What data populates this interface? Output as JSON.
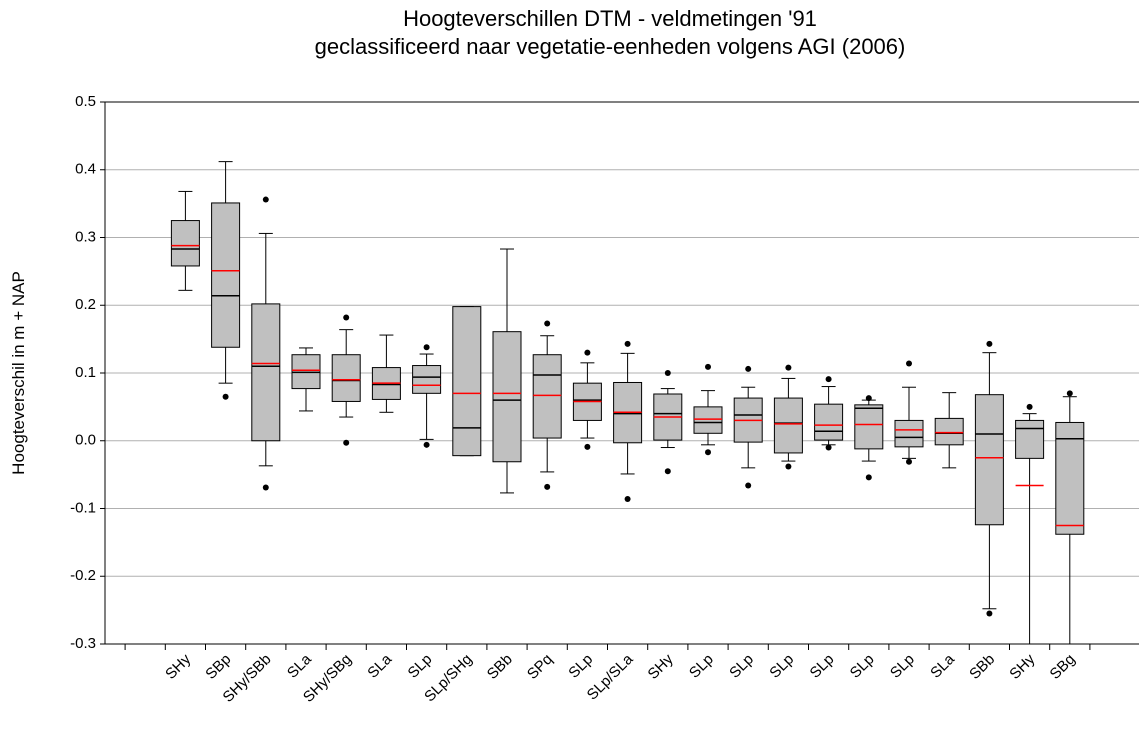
{
  "chart_data": {
    "type": "box",
    "title": "Hoogteverschillen DTM - veldmetingen '91",
    "subtitle": "geclassificeerd naar vegetatie-eenheden volgens AGI (2006)",
    "y_label": "Hoogteverschil in m + NAP",
    "ylim": [
      -0.3,
      0.5
    ],
    "yticks": [
      0.5,
      0.4,
      0.3,
      0.2,
      0.1,
      {
        "value": 0,
        "label": "0.0"
      },
      -0.1,
      -0.2,
      -0.3
    ],
    "grid": true,
    "box_color": "#c0c0c0",
    "median_color": "#000000",
    "mean_color": "#ff0000",
    "boxes": [
      {
        "label": "SHy",
        "low": 0.222,
        "q1": 0.258,
        "median": 0.283,
        "q3": 0.325,
        "high": 0.368,
        "mean": 0.288,
        "outliers": []
      },
      {
        "label": "SBp",
        "low": 0.085,
        "q1": 0.138,
        "median": 0.214,
        "q3": 0.351,
        "high": 0.412,
        "mean": 0.251,
        "outliers": [
          0.065
        ]
      },
      {
        "label": "SHy/SBb",
        "low": -0.037,
        "q1": 0.0,
        "median": 0.11,
        "q3": 0.202,
        "high": 0.306,
        "mean": 0.114,
        "outliers": [
          0.356,
          -0.069
        ]
      },
      {
        "label": "SLa",
        "low": 0.044,
        "q1": 0.077,
        "median": 0.101,
        "q3": 0.127,
        "high": 0.137,
        "mean": 0.104,
        "outliers": []
      },
      {
        "label": "SHy/SBg",
        "low": 0.035,
        "q1": 0.058,
        "median": 0.089,
        "q3": 0.127,
        "high": 0.164,
        "mean": 0.09,
        "outliers": [
          0.182,
          -0.003
        ]
      },
      {
        "label": "SLa",
        "low": 0.042,
        "q1": 0.061,
        "median": 0.083,
        "q3": 0.108,
        "high": 0.156,
        "mean": 0.085,
        "outliers": []
      },
      {
        "label": "SLp",
        "low": 0.002,
        "q1": 0.07,
        "median": 0.094,
        "q3": 0.111,
        "high": 0.128,
        "mean": 0.082,
        "outliers": [
          0.138,
          -0.006
        ]
      },
      {
        "label": "SLp/SHg",
        "low": -0.022,
        "q1": -0.022,
        "median": 0.019,
        "q3": 0.198,
        "high": 0.198,
        "mean": 0.07,
        "outliers": []
      },
      {
        "label": "SBb",
        "low": -0.077,
        "q1": -0.031,
        "median": 0.06,
        "q3": 0.161,
        "high": 0.283,
        "mean": 0.07,
        "outliers": []
      },
      {
        "label": "SPq",
        "low": -0.046,
        "q1": 0.004,
        "median": 0.097,
        "q3": 0.127,
        "high": 0.155,
        "mean": 0.067,
        "outliers": [
          0.173,
          -0.068
        ]
      },
      {
        "label": "SLp",
        "low": 0.004,
        "q1": 0.03,
        "median": 0.06,
        "q3": 0.085,
        "high": 0.115,
        "mean": 0.058,
        "outliers": [
          0.13,
          -0.009
        ]
      },
      {
        "label": "SLp/SLa",
        "low": -0.049,
        "q1": -0.003,
        "median": 0.04,
        "q3": 0.086,
        "high": 0.129,
        "mean": 0.042,
        "outliers": [
          0.143,
          -0.086
        ]
      },
      {
        "label": "SHy",
        "low": -0.01,
        "q1": 0.001,
        "median": 0.04,
        "q3": 0.069,
        "high": 0.077,
        "mean": 0.035,
        "outliers": [
          0.1,
          -0.045
        ]
      },
      {
        "label": "SLp",
        "low": -0.006,
        "q1": 0.011,
        "median": 0.027,
        "q3": 0.05,
        "high": 0.074,
        "mean": 0.032,
        "outliers": [
          0.109,
          -0.017
        ]
      },
      {
        "label": "SLp",
        "low": -0.04,
        "q1": -0.002,
        "median": 0.038,
        "q3": 0.063,
        "high": 0.079,
        "mean": 0.03,
        "outliers": [
          0.106,
          -0.066
        ]
      },
      {
        "label": "SLp",
        "low": -0.03,
        "q1": -0.018,
        "median": 0.026,
        "q3": 0.063,
        "high": 0.092,
        "mean": 0.025,
        "outliers": [
          0.108,
          -0.038
        ]
      },
      {
        "label": "SLp",
        "low": -0.006,
        "q1": 0.001,
        "median": 0.014,
        "q3": 0.054,
        "high": 0.08,
        "mean": 0.023,
        "outliers": [
          0.091,
          -0.01
        ]
      },
      {
        "label": "SLp",
        "low": -0.03,
        "q1": -0.012,
        "median": 0.048,
        "q3": 0.053,
        "high": 0.06,
        "mean": 0.024,
        "outliers": [
          0.063,
          -0.054
        ]
      },
      {
        "label": "SLp",
        "low": -0.026,
        "q1": -0.009,
        "median": 0.005,
        "q3": 0.03,
        "high": 0.079,
        "mean": 0.016,
        "outliers": [
          0.114,
          -0.031
        ]
      },
      {
        "label": "SLa",
        "low": -0.04,
        "q1": -0.006,
        "median": 0.011,
        "q3": 0.033,
        "high": 0.071,
        "mean": 0.012,
        "outliers": []
      },
      {
        "label": "SBb",
        "low": -0.248,
        "q1": -0.124,
        "median": 0.01,
        "q3": 0.068,
        "high": 0.13,
        "mean": -0.025,
        "outliers": [
          0.143,
          -0.255
        ]
      },
      {
        "label": "SHy",
        "low": -0.3,
        "q1": -0.026,
        "median": 0.018,
        "q3": 0.03,
        "high": 0.04,
        "mean": -0.066,
        "outliers": [
          0.05
        ]
      },
      {
        "label": "SBg",
        "low": -0.3,
        "q1": -0.138,
        "median": 0.003,
        "q3": 0.027,
        "high": 0.065,
        "mean": -0.125,
        "outliers": [
          0.07
        ]
      }
    ]
  }
}
